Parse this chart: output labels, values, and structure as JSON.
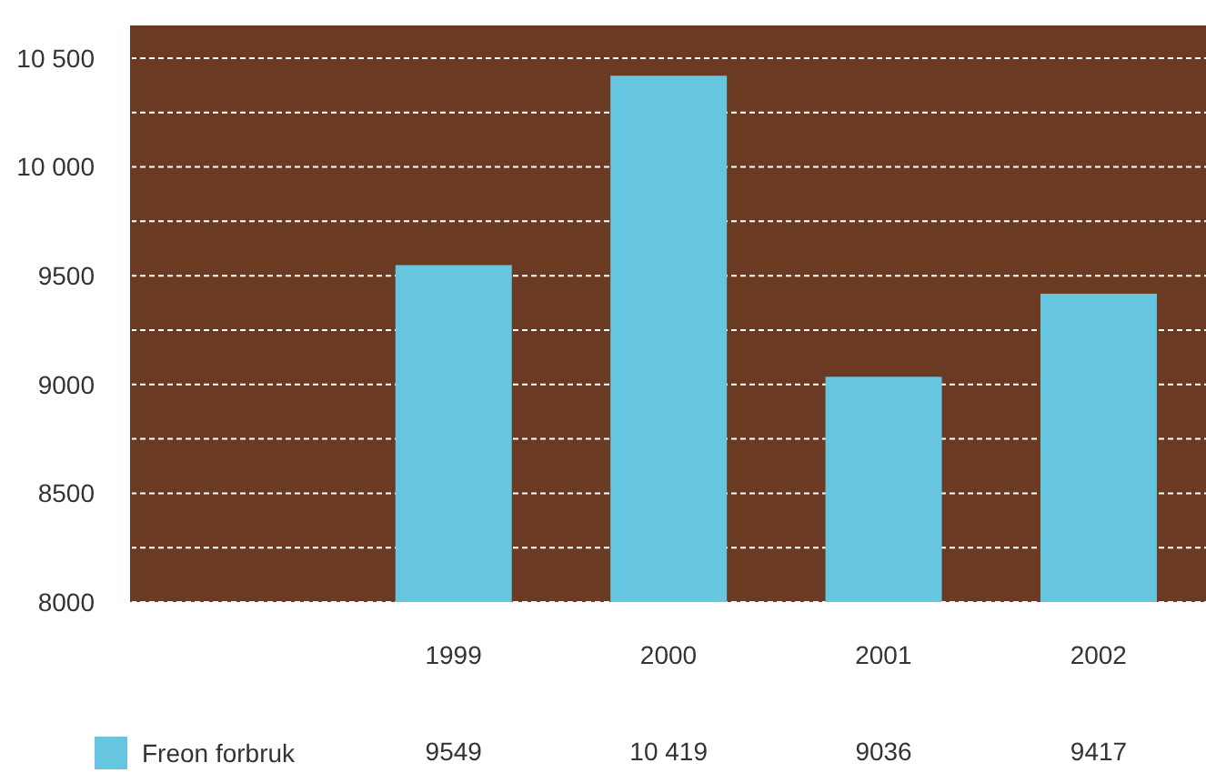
{
  "chart_data": {
    "type": "bar",
    "categories": [
      null,
      "1999",
      "2000",
      "2001",
      "2002"
    ],
    "series": [
      {
        "name": "Freon forbruk",
        "color": "#66c5df",
        "values": [
          null,
          9549,
          10419,
          9036,
          9417
        ],
        "value_labels": [
          null,
          "9549",
          "10 419",
          "9036",
          "9417"
        ]
      }
    ],
    "ylim": [
      8000,
      10650
    ],
    "yticks": [
      8000,
      {
        "value": 8250,
        "label": null
      },
      8500,
      {
        "value": 8750,
        "label": null
      },
      9000,
      {
        "value": 9250,
        "label": null
      },
      9500,
      {
        "value": 9750,
        "label": null
      },
      {
        "value": 10000,
        "label": "10 000"
      },
      {
        "value": 10250,
        "label": null
      },
      {
        "value": 10500,
        "label": "10 500"
      }
    ],
    "grid": "y",
    "legend": "bottom left"
  }
}
